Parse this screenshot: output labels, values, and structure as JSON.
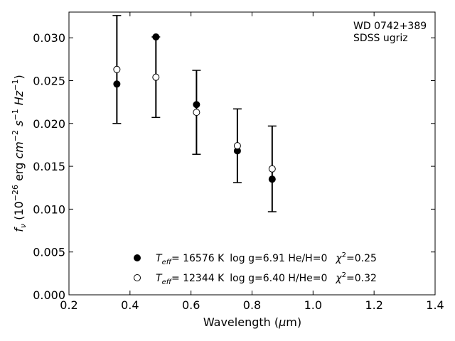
{
  "chart_data": {
    "type": "scatter",
    "annotations": [
      "WD 0742+389",
      "SDSS ugriz"
    ],
    "xlabel": "Wavelength (μm)",
    "ylabel": "f_ν (10^-26 erg cm^-2 s^-1 Hz^-1)",
    "xlim": [
      0.2,
      1.4
    ],
    "ylim": [
      0.0,
      0.033
    ],
    "xticks": [
      "0.2",
      "0.4",
      "0.6",
      "0.8",
      "1.0",
      "1.2",
      "1.4"
    ],
    "yticks": [
      "0.000",
      "0.005",
      "0.010",
      "0.015",
      "0.020",
      "0.025",
      "0.030"
    ],
    "observed": {
      "x": [
        0.357,
        0.485,
        0.618,
        0.752,
        0.866
      ],
      "y": [
        0.0263,
        0.0254,
        0.0213,
        0.0174,
        0.0147
      ],
      "yerr": [
        0.0063,
        0.0047,
        0.0049,
        0.0043,
        0.005
      ]
    },
    "series": [
      {
        "name": "T_eff= 16576 K  log g=6.91  He/H=0  χ²=0.25",
        "marker": "filled-circle",
        "x": [
          0.357,
          0.485,
          0.618,
          0.752,
          0.866
        ],
        "y": [
          0.0246,
          0.0301,
          0.0222,
          0.0168,
          0.0135
        ]
      },
      {
        "name": "T_eff= 12344 K  log g=6.40  H/He=0  χ²=0.32",
        "marker": "open-circle",
        "x": [
          0.357,
          0.485,
          0.618,
          0.752,
          0.866
        ],
        "y": [
          0.0263,
          0.0254,
          0.0213,
          0.0174,
          0.0147
        ]
      }
    ],
    "legend": [
      {
        "marker": "filled-circle",
        "teff_value": "= 16576 K",
        "params": "log g=6.91  He/H=0",
        "chi_value": "=0.25"
      },
      {
        "marker": "open-circle",
        "teff_value": "= 12344 K",
        "params": "log g=6.40  H/He=0",
        "chi_value": "=0.32"
      }
    ],
    "legend_position": "lower-center",
    "grid": false,
    "colors": {
      "marker_fill": "#000000",
      "marker_open_fill": "#ffffff",
      "axes": "#000000"
    }
  }
}
